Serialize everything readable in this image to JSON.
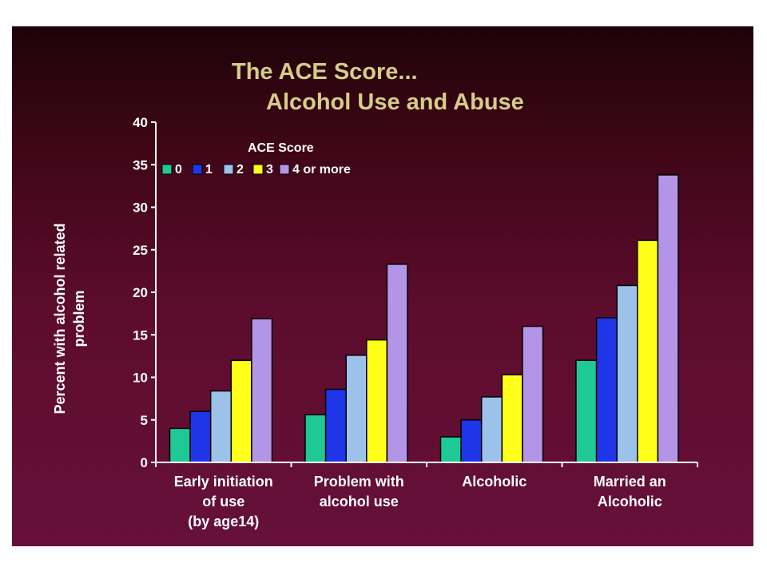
{
  "chart_data": {
    "type": "bar",
    "title": [
      "The ACE Score...",
      "Alcohol Use and Abuse"
    ],
    "ylabel": [
      "Percent with alcohol related",
      "problem"
    ],
    "xlabel": "",
    "ylim": [
      0,
      40
    ],
    "yticks": [
      0,
      5,
      10,
      15,
      20,
      25,
      30,
      35,
      40
    ],
    "categories": [
      [
        "Early initiation",
        "of use",
        "(by age14)"
      ],
      [
        "Problem with",
        "alcohol use"
      ],
      [
        "Alcoholic"
      ],
      [
        "Married an",
        "Alcoholic"
      ]
    ],
    "legend": {
      "title": "ACE Score",
      "placement": "top-left"
    },
    "series": [
      {
        "name": "0",
        "color": "#1fc995",
        "values": [
          4,
          5.6,
          3,
          12
        ]
      },
      {
        "name": "1",
        "color": "#1e36e8",
        "values": [
          6,
          8.6,
          5,
          17
        ]
      },
      {
        "name": "2",
        "color": "#9cc2ea",
        "values": [
          8.4,
          12.6,
          7.7,
          20.8
        ]
      },
      {
        "name": "3",
        "color": "#ffff1a",
        "values": [
          12,
          14.4,
          10.3,
          26.1
        ]
      },
      {
        "name": "4 or more",
        "color": "#b394e6",
        "values": [
          16.9,
          23.3,
          16,
          33.8
        ]
      }
    ]
  }
}
